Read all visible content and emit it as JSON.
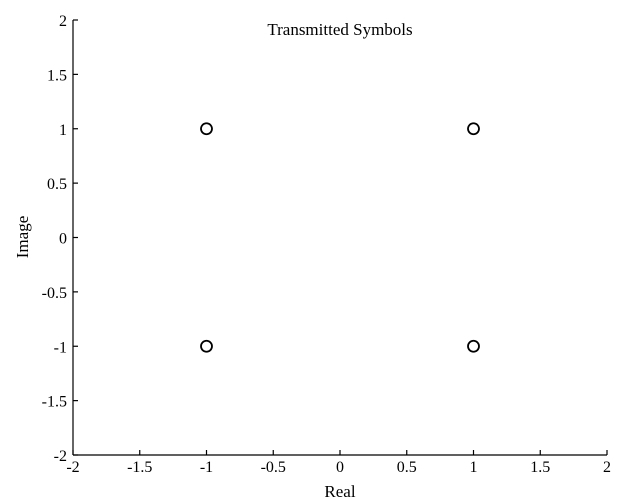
{
  "chart_data": {
    "type": "scatter",
    "title": "Transmitted Symbols",
    "xlabel": "Real",
    "ylabel": "Image",
    "xlim": [
      -2,
      2
    ],
    "ylim": [
      -2,
      2
    ],
    "xticks": [
      "-2",
      "-1.5",
      "-1",
      "-0.5",
      "0",
      "0.5",
      "1",
      "1.5",
      "2"
    ],
    "yticks": [
      "2",
      "1.5",
      "1",
      "0.5",
      "0",
      "-0.5",
      "-1",
      "-1.5",
      "-2"
    ],
    "grid": false,
    "marker": "circle",
    "points": [
      {
        "x": -1,
        "y": 1
      },
      {
        "x": 1,
        "y": 1
      },
      {
        "x": -1,
        "y": -1
      },
      {
        "x": 1,
        "y": -1
      }
    ]
  }
}
